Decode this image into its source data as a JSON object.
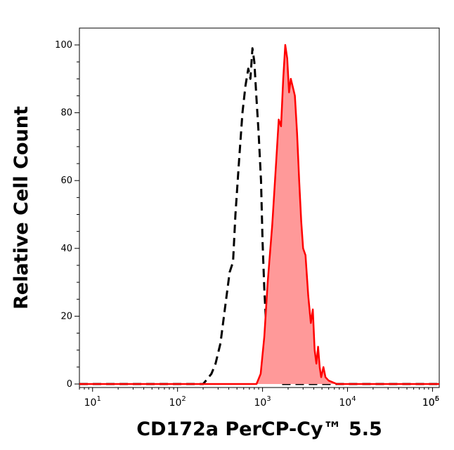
{
  "chart_data": {
    "type": "area",
    "xlabel": "CD172a PerCP-Cy™ 5.5",
    "ylabel": "Relative Cell Count",
    "x_scale": "log",
    "xlim": [
      7,
      120000
    ],
    "ylim": [
      0,
      100
    ],
    "x_ticks": [
      {
        "base": "10",
        "exp": "1",
        "value": 10
      },
      {
        "base": "10",
        "exp": "2",
        "value": 100
      },
      {
        "base": "10",
        "exp": "3",
        "value": 1000
      },
      {
        "base": "10",
        "exp": "4",
        "value": 10000
      },
      {
        "base": "10",
        "exp": "5",
        "value": 100000
      },
      {
        "base": "10",
        "exp": "6",
        "value": 1000000
      }
    ],
    "y_ticks": [
      "0",
      "20",
      "40",
      "60",
      "80",
      "100"
    ],
    "grid": false,
    "series": [
      {
        "style": "dashed-outline",
        "color": "#000000",
        "points": [
          [
            7,
            0
          ],
          [
            200,
            0
          ],
          [
            250,
            3
          ],
          [
            280,
            6
          ],
          [
            320,
            12
          ],
          [
            360,
            22
          ],
          [
            410,
            33
          ],
          [
            450,
            36
          ],
          [
            480,
            50
          ],
          [
            530,
            66
          ],
          [
            580,
            80
          ],
          [
            630,
            88
          ],
          [
            680,
            93
          ],
          [
            720,
            90
          ],
          [
            760,
            99
          ],
          [
            800,
            95
          ],
          [
            850,
            84
          ],
          [
            900,
            74
          ],
          [
            960,
            60
          ],
          [
            1000,
            42
          ],
          [
            1050,
            28
          ],
          [
            1100,
            18
          ],
          [
            1180,
            10
          ],
          [
            1300,
            4
          ],
          [
            1450,
            1
          ],
          [
            1650,
            0
          ],
          [
            120000,
            0
          ]
        ]
      },
      {
        "style": "filled",
        "color": "#ff0000",
        "fill": "#ff9999",
        "points": [
          [
            7,
            0
          ],
          [
            850,
            0
          ],
          [
            950,
            3
          ],
          [
            1050,
            14
          ],
          [
            1150,
            30
          ],
          [
            1300,
            47
          ],
          [
            1450,
            66
          ],
          [
            1550,
            78
          ],
          [
            1650,
            76
          ],
          [
            1750,
            90
          ],
          [
            1850,
            100
          ],
          [
            1950,
            96
          ],
          [
            2050,
            86
          ],
          [
            2150,
            90
          ],
          [
            2250,
            88
          ],
          [
            2400,
            85
          ],
          [
            2550,
            74
          ],
          [
            2700,
            60
          ],
          [
            2850,
            48
          ],
          [
            3000,
            40
          ],
          [
            3200,
            38
          ],
          [
            3450,
            26
          ],
          [
            3700,
            18
          ],
          [
            3900,
            22
          ],
          [
            4100,
            10
          ],
          [
            4300,
            6
          ],
          [
            4500,
            11
          ],
          [
            4700,
            5
          ],
          [
            4900,
            2
          ],
          [
            5200,
            5
          ],
          [
            5500,
            2
          ],
          [
            6000,
            1
          ],
          [
            7500,
            0
          ],
          [
            120000,
            0
          ]
        ]
      }
    ]
  }
}
